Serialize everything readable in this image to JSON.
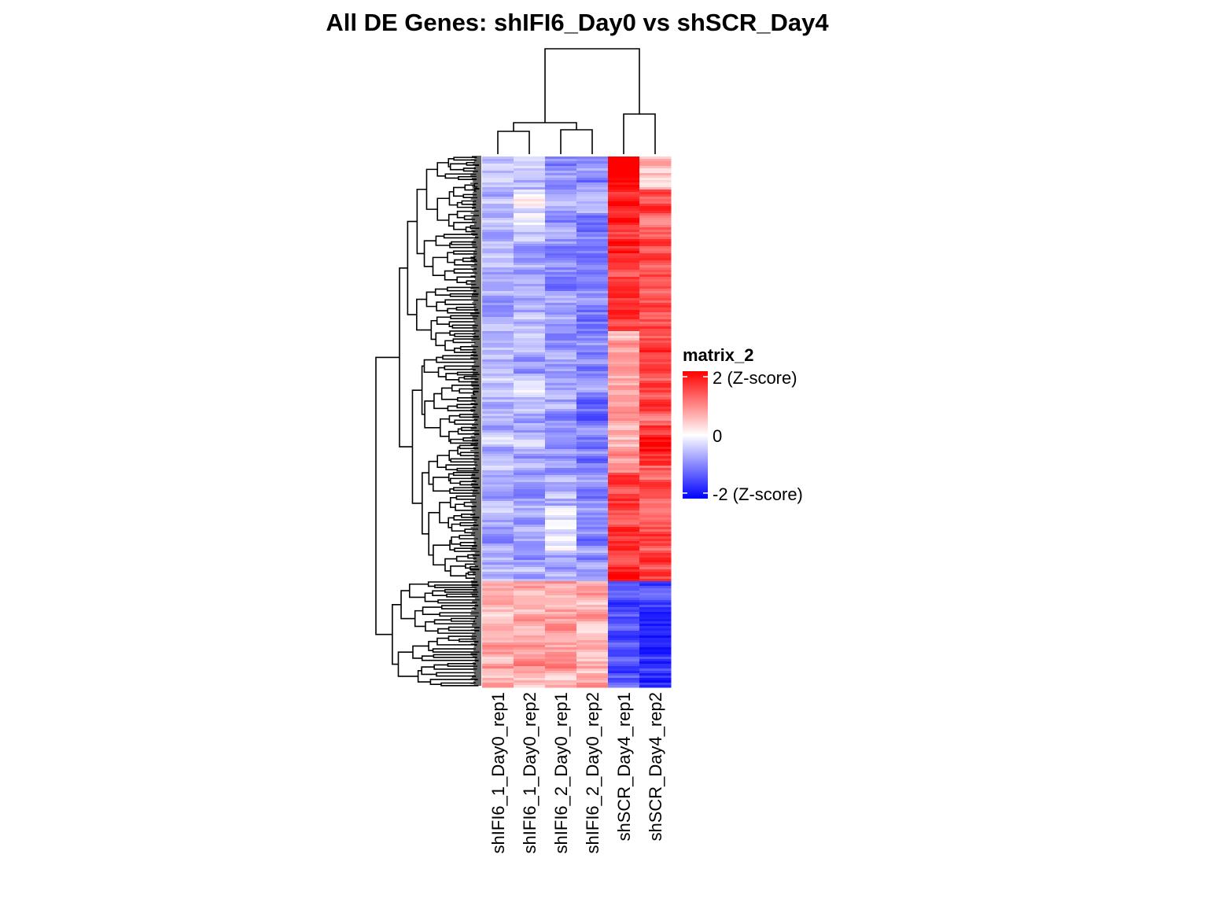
{
  "chart_data": {
    "type": "heatmap",
    "title": "All DE Genes: shIFI6_Day0  vs  shSCR_Day4",
    "columns": [
      "shIFI6_1_Day0_rep1",
      "shIFI6_1_Day0_rep2",
      "shIFI6_2_Day0_rep1",
      "shIFI6_2_Day0_rep2",
      "shSCR_Day4_rep1",
      "shSCR_Day4_rep2"
    ],
    "column_dendrogram": "((shIFI6_1_Day0_rep1, shIFI6_1_Day0_rep2), (shIFI6_2_Day0_rep1, shIFI6_2_Day0_rep2)), (shSCR_Day4_rep1, shSCR_Day4_rep2)",
    "row_clusters": [
      {
        "name": "up in shSCR_Day4 (top block)",
        "fraction_of_rows": 0.8,
        "mean_z": [
          -0.6,
          -0.6,
          -0.8,
          -0.9,
          1.6,
          1.4
        ]
      },
      {
        "name": "down in shSCR_Day4 (bottom block)",
        "fraction_of_rows": 0.2,
        "mean_z": [
          0.6,
          0.6,
          0.7,
          0.7,
          -1.4,
          -1.6
        ]
      }
    ],
    "legend": {
      "title": "matrix_2",
      "ticks": [
        "2 (Z-score)",
        "0",
        "-2 (Z-score)"
      ],
      "range": [
        -2,
        2
      ],
      "colors": {
        "high": "#ff0000",
        "mid": "#ffffff",
        "low": "#0000ff"
      }
    }
  }
}
